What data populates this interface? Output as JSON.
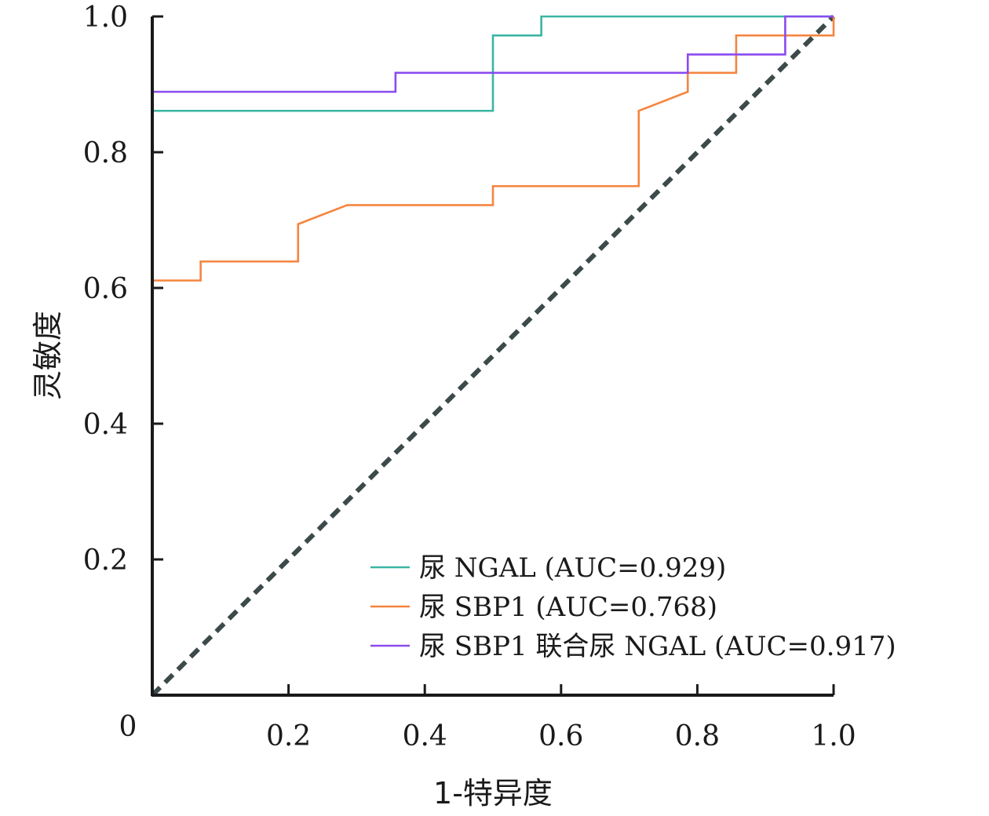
{
  "chart_data": {
    "type": "line",
    "title": "",
    "xlabel": "1-特异度",
    "ylabel": "灵敏度",
    "xlim": [
      0,
      1
    ],
    "ylim": [
      0,
      1
    ],
    "origin_label": "0",
    "x_ticks": [
      {
        "value": 0.2,
        "label": "0.2"
      },
      {
        "value": 0.4,
        "label": "0.4"
      },
      {
        "value": 0.6,
        "label": "0.6"
      },
      {
        "value": 0.8,
        "label": "0.8"
      },
      {
        "value": 1.0,
        "label": "1.0"
      }
    ],
    "y_ticks": [
      {
        "value": 0.2,
        "label": "0.2"
      },
      {
        "value": 0.4,
        "label": "0.4"
      },
      {
        "value": 0.6,
        "label": "0.6"
      },
      {
        "value": 0.8,
        "label": "0.8"
      },
      {
        "value": 1.0,
        "label": "1.0"
      }
    ],
    "grid": false,
    "legend_position": "bottom-right",
    "series": [
      {
        "name": "尿 NGAL (AUC=0.929)",
        "color": "#3bb5a3",
        "x": [
          0,
          0.5,
          0.5,
          0.571,
          0.571,
          1.0
        ],
        "y": [
          0.861,
          0.861,
          0.972,
          0.972,
          1.0,
          1.0
        ]
      },
      {
        "name": "尿 SBP1 (AUC=0.768)",
        "color": "#f5853f",
        "x": [
          0,
          0.071,
          0.071,
          0.214,
          0.214,
          0.286,
          0.5,
          0.5,
          0.714,
          0.714,
          0.786,
          0.786,
          0.857,
          0.857,
          1.0,
          1.0
        ],
        "y": [
          0.611,
          0.611,
          0.639,
          0.639,
          0.694,
          0.722,
          0.722,
          0.75,
          0.75,
          0.861,
          0.889,
          0.917,
          0.917,
          0.972,
          0.972,
          1.0
        ]
      },
      {
        "name": "尿 SBP1 联合尿 NGAL (AUC=0.917)",
        "color": "#8a4bef",
        "x": [
          0,
          0.357,
          0.357,
          0.786,
          0.786,
          0.929,
          0.929,
          1.0
        ],
        "y": [
          0.889,
          0.889,
          0.917,
          0.917,
          0.944,
          0.944,
          1.0,
          1.0
        ]
      }
    ],
    "reference_line": {
      "color": "#3d4a4a",
      "style": "dashed",
      "x": [
        0,
        1
      ],
      "y": [
        0,
        1
      ]
    }
  }
}
